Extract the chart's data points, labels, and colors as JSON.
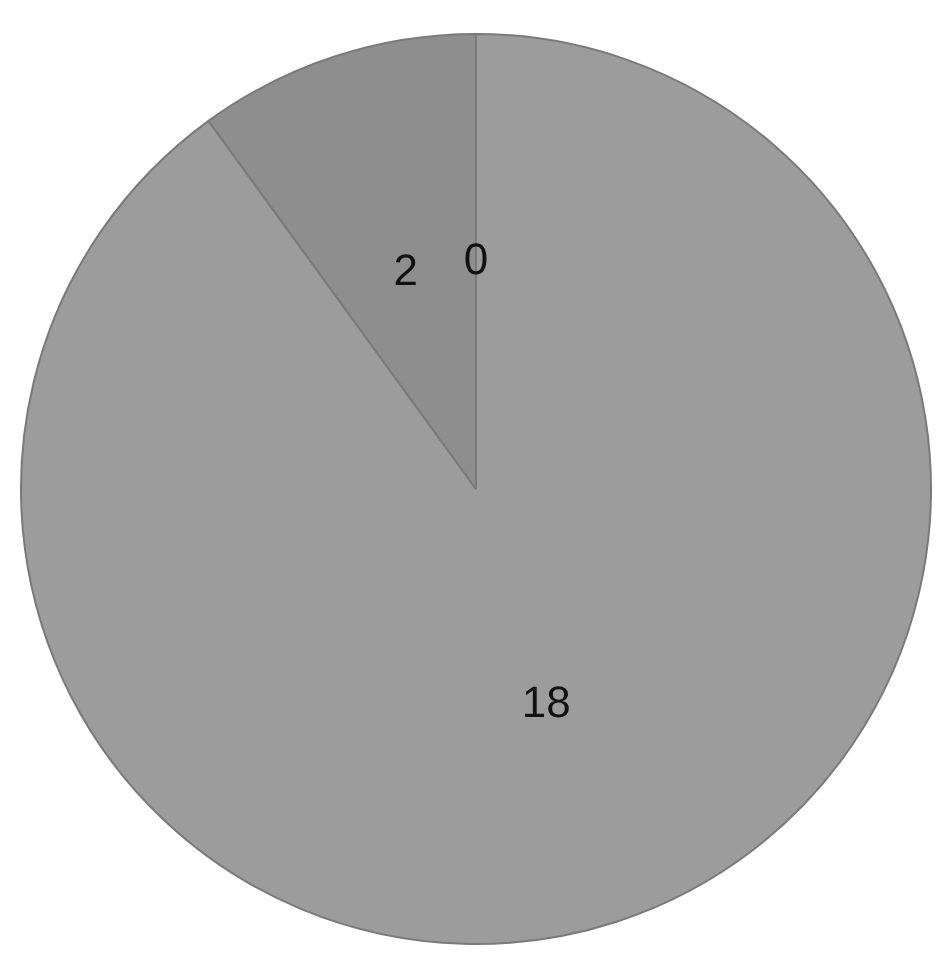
{
  "chart_data": {
    "type": "pie",
    "categories": [
      null,
      null,
      null
    ],
    "values": [
      0,
      18,
      2
    ],
    "colors": [
      "#a3a3a3",
      "#9c9c9c",
      "#8e8e8e"
    ],
    "value_labels": [
      "0",
      "18",
      "2"
    ],
    "legend": false
  }
}
